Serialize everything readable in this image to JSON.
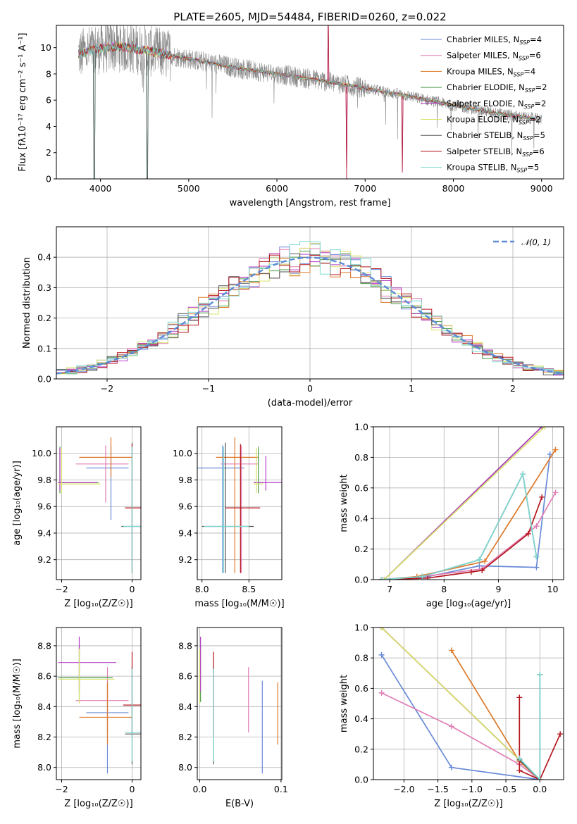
{
  "title": "PLATE=2605, MJD=54484, FIBERID=0260, z=0.022",
  "models": [
    {
      "name": "Chabrier MILES",
      "nssp": "4",
      "color": "#6a8ad8"
    },
    {
      "name": "Salpeter MILES",
      "nssp": "6",
      "color": "#e07fb5"
    },
    {
      "name": "Kroupa MILES",
      "nssp": "4",
      "color": "#dd7a2a"
    },
    {
      "name": "Chabrier ELODIE",
      "nssp": "2",
      "color": "#4c9a4a"
    },
    {
      "name": "Salpeter ELODIE",
      "nssp": "2",
      "color": "#b33cc4"
    },
    {
      "name": "Kroupa ELODIE",
      "nssp": "2",
      "color": "#d9e36a"
    },
    {
      "name": "Chabrier STELIB",
      "nssp": "5",
      "color": "#555555"
    },
    {
      "name": "Salpeter STELIB",
      "nssp": "6",
      "color": "#b3161d"
    },
    {
      "name": "Kroupa STELIB",
      "nssp": "5",
      "color": "#7fd9d3"
    }
  ],
  "nssp_label": "N",
  "nssp_sub": "SSP",
  "chart_data": [
    {
      "id": "spectrum",
      "type": "line",
      "xlabel": "wavelength [Angstrom, rest frame]",
      "ylabel": "Flux [fλ10⁻¹⁷ erg cm⁻² s⁻¹ A⁻¹]",
      "xlim": [
        3500,
        9250
      ],
      "ylim": [
        0,
        11.7
      ],
      "xticks": [
        4000,
        5000,
        6000,
        7000,
        8000,
        9000
      ],
      "yticks": [
        0,
        2,
        4,
        6,
        8,
        10
      ],
      "data_color": "#888888",
      "continuum": [
        [
          3750,
          9.5
        ],
        [
          3950,
          9.9
        ],
        [
          4200,
          10.1
        ],
        [
          4500,
          9.8
        ],
        [
          4800,
          9.4
        ],
        [
          5200,
          8.9
        ],
        [
          5600,
          8.4
        ],
        [
          6000,
          8.0
        ],
        [
          6500,
          7.5
        ],
        [
          7000,
          6.9
        ],
        [
          7500,
          6.3
        ],
        [
          8000,
          5.6
        ],
        [
          8500,
          5.0
        ],
        [
          9000,
          4.5
        ]
      ],
      "spikes": [
        [
          3930,
          0
        ],
        [
          4530,
          0
        ],
        [
          6790,
          0
        ],
        [
          7420,
          0.5
        ],
        [
          6580,
          13
        ]
      ],
      "grid": false
    },
    {
      "id": "residuals",
      "type": "histogram",
      "xlabel": "(data-model)/error",
      "ylabel": "Normed distribution",
      "xlim": [
        -2.5,
        2.5
      ],
      "ylim": [
        0,
        0.5
      ],
      "xticks": [
        -2,
        -1,
        0,
        1,
        2
      ],
      "yticks": [
        0.0,
        0.1,
        0.2,
        0.3,
        0.4
      ],
      "legend": "𝒩(0, 1)",
      "legend_position": "top-right",
      "bin_width": 0.1,
      "grid": true
    },
    {
      "id": "age_vs_z",
      "type": "scatter",
      "xlabel": "Z [log₁₀(Z/Z☉)]",
      "ylabel": "age  [log₁₀(age/yr)]",
      "xlim": [
        -2.15,
        0.25
      ],
      "ylim": [
        9.05,
        10.2
      ],
      "xticks": [
        -2,
        0
      ],
      "yticks": [
        9.2,
        9.4,
        9.6,
        9.8,
        10.0
      ],
      "grid": true,
      "points": [
        {
          "m": 0,
          "x": -0.6,
          "y": 9.89,
          "ex": [
            -1.3,
            -0.1
          ],
          "ey": [
            9.5,
            10.05
          ]
        },
        {
          "m": 1,
          "x": -0.75,
          "y": 9.92,
          "ex": [
            -1.6,
            -0.1
          ],
          "ey": [
            9.63,
            10.06
          ]
        },
        {
          "m": 2,
          "x": -0.6,
          "y": 9.97,
          "ex": [
            -1.5,
            0.0
          ],
          "ey": [
            9.82,
            10.12
          ]
        },
        {
          "m": 3,
          "x": -2.05,
          "y": 9.78,
          "ex": [
            -2.1,
            -0.95
          ],
          "ey": [
            9.7,
            10.05
          ]
        },
        {
          "m": 4,
          "x": -2.05,
          "y": 9.78,
          "ex": [
            -2.1,
            -1.0
          ],
          "ey": [
            9.72,
            10.04
          ]
        },
        {
          "m": 5,
          "x": -2.0,
          "y": 9.77,
          "ex": [
            -2.1,
            -0.9
          ],
          "ey": [
            9.7,
            10.04
          ]
        },
        {
          "m": 6,
          "x": 0.0,
          "y": 9.45,
          "ex": [
            -0.3,
            0.3
          ],
          "ey": [
            9.1,
            10.08
          ]
        },
        {
          "m": 7,
          "x": 0.0,
          "y": 9.59,
          "ex": [
            -0.2,
            0.25
          ],
          "ey": [
            9.1,
            10.07
          ]
        },
        {
          "m": 8,
          "x": 0.0,
          "y": 9.45,
          "ex": [
            -0.25,
            0.25
          ],
          "ey": [
            9.1,
            10.05
          ]
        }
      ]
    },
    {
      "id": "age_vs_mass",
      "type": "scatter",
      "xlabel": "mass [log₁₀(M/M☉)]",
      "ylabel": "",
      "xlim": [
        7.95,
        8.85
      ],
      "ylim": [
        9.05,
        10.2
      ],
      "xticks": [
        8.0,
        8.5
      ],
      "yticks": [
        9.2,
        9.4,
        9.6,
        9.8,
        10.0
      ],
      "grid": true,
      "points": [
        {
          "m": 0,
          "x": 8.22,
          "y": 9.89,
          "ex": [
            7.95,
            8.45
          ],
          "ey": [
            9.1,
            10.06
          ]
        },
        {
          "m": 1,
          "x": 8.42,
          "y": 9.92,
          "ex": [
            8.2,
            8.6
          ],
          "ey": [
            9.1,
            10.06
          ]
        },
        {
          "m": 2,
          "x": 8.35,
          "y": 9.97,
          "ex": [
            8.15,
            8.6
          ],
          "ey": [
            9.1,
            10.12
          ]
        },
        {
          "m": 3,
          "x": 8.6,
          "y": 9.78,
          "ex": [
            8.55,
            8.65
          ],
          "ey": [
            9.7,
            10.05
          ]
        },
        {
          "m": 4,
          "x": 8.68,
          "y": 9.78,
          "ex": [
            8.55,
            8.85
          ],
          "ey": [
            9.72,
            9.98
          ]
        },
        {
          "m": 5,
          "x": 8.58,
          "y": 9.77,
          "ex": [
            8.55,
            8.65
          ],
          "ey": [
            9.7,
            10.04
          ]
        },
        {
          "m": 6,
          "x": 8.25,
          "y": 9.45,
          "ex": [
            8.0,
            8.55
          ],
          "ey": [
            9.1,
            10.08
          ]
        },
        {
          "m": 7,
          "x": 8.41,
          "y": 9.59,
          "ex": [
            8.25,
            8.62
          ],
          "ey": [
            9.1,
            10.07
          ]
        },
        {
          "m": 8,
          "x": 8.23,
          "y": 9.45,
          "ex": [
            8.02,
            8.5
          ],
          "ey": [
            9.1,
            10.05
          ]
        }
      ]
    },
    {
      "id": "weight_vs_age",
      "type": "line",
      "xlabel": "age  [log₁₀(age/yr)]",
      "ylabel": "mass weight",
      "xlim": [
        6.7,
        10.2
      ],
      "ylim": [
        0,
        1.0
      ],
      "xticks": [
        7,
        8,
        9,
        10
      ],
      "yticks": [
        0.0,
        0.2,
        0.4,
        0.6,
        0.8,
        1.0
      ],
      "grid": true,
      "series": [
        {
          "m": 0,
          "x": [
            6.85,
            7.7,
            8.65,
            9.7,
            9.95
          ],
          "y": [
            0.0,
            0.02,
            0.09,
            0.08,
            0.82
          ]
        },
        {
          "m": 1,
          "x": [
            6.85,
            7.6,
            8.7,
            9.7,
            10.05
          ],
          "y": [
            0.0,
            0.02,
            0.07,
            0.35,
            0.57
          ]
        },
        {
          "m": 2,
          "x": [
            6.85,
            7.5,
            8.75,
            10.05
          ],
          "y": [
            0.0,
            0.02,
            0.12,
            0.85
          ]
        },
        {
          "m": 3,
          "x": [
            6.9,
            9.8
          ],
          "y": [
            0.0,
            1.0
          ]
        },
        {
          "m": 4,
          "x": [
            6.9,
            9.8
          ],
          "y": [
            0.0,
            1.0
          ]
        },
        {
          "m": 5,
          "x": [
            6.9,
            9.85
          ],
          "y": [
            0.0,
            1.0
          ]
        },
        {
          "m": 6,
          "x": [
            6.85,
            7.6,
            8.65,
            9.45,
            9.7
          ],
          "y": [
            0.0,
            0.02,
            0.13,
            0.69,
            0.15
          ]
        },
        {
          "m": 7,
          "x": [
            6.85,
            7.7,
            8.5,
            8.7,
            9.55,
            9.8
          ],
          "y": [
            0.0,
            0.01,
            0.05,
            0.06,
            0.3,
            0.54
          ]
        },
        {
          "m": 8,
          "x": [
            6.85,
            7.6,
            8.65,
            9.45,
            9.7
          ],
          "y": [
            0.0,
            0.02,
            0.13,
            0.69,
            0.15
          ]
        }
      ]
    },
    {
      "id": "mass_vs_z",
      "type": "scatter",
      "xlabel": "Z [log₁₀(Z/Z☉)]",
      "ylabel": "mass [log₁₀(M/M☉)]",
      "xlim": [
        -2.15,
        0.25
      ],
      "ylim": [
        7.92,
        8.92
      ],
      "xticks": [
        -2,
        0
      ],
      "yticks": [
        8.0,
        8.2,
        8.4,
        8.6,
        8.8
      ],
      "grid": true,
      "points": [
        {
          "m": 0,
          "x": -0.7,
          "y": 8.36,
          "ex": [
            -1.3,
            -0.1
          ],
          "ey": [
            7.96,
            8.56
          ]
        },
        {
          "m": 1,
          "x": -0.7,
          "y": 8.44,
          "ex": [
            -1.6,
            -0.1
          ],
          "ey": [
            8.23,
            8.66
          ]
        },
        {
          "m": 2,
          "x": -0.7,
          "y": 8.33,
          "ex": [
            -1.5,
            0.0
          ],
          "ey": [
            8.15,
            8.56
          ]
        },
        {
          "m": 3,
          "x": -1.5,
          "y": 8.59,
          "ex": [
            -2.1,
            -0.55
          ],
          "ey": [
            8.43,
            8.8
          ]
        },
        {
          "m": 4,
          "x": -1.5,
          "y": 8.69,
          "ex": [
            -2.1,
            -0.45
          ],
          "ey": [
            8.5,
            8.86
          ]
        },
        {
          "m": 5,
          "x": -1.5,
          "y": 8.58,
          "ex": [
            -2.1,
            -0.5
          ],
          "ey": [
            8.42,
            8.78
          ]
        },
        {
          "m": 6,
          "x": 0.0,
          "y": 8.22,
          "ex": [
            -0.2,
            0.3
          ],
          "ey": [
            8.02,
            8.66
          ]
        },
        {
          "m": 7,
          "x": 0.0,
          "y": 8.41,
          "ex": [
            -0.25,
            0.3
          ],
          "ey": [
            8.21,
            8.76
          ]
        },
        {
          "m": 8,
          "x": 0.0,
          "y": 8.23,
          "ex": [
            -0.2,
            0.25
          ],
          "ey": [
            8.04,
            8.65
          ]
        }
      ]
    },
    {
      "id": "mass_vs_ebv",
      "type": "scatter",
      "xlabel": "E(B-V)",
      "ylabel": "",
      "xlim": [
        -0.003,
        0.101
      ],
      "ylim": [
        7.92,
        8.92
      ],
      "xticks": [
        0.0,
        0.1
      ],
      "yticks": [
        8.0,
        8.2,
        8.4,
        8.6,
        8.8
      ],
      "grid": true,
      "points": [
        {
          "m": 0,
          "x": 0.077,
          "y": 8.36,
          "ey": [
            7.96,
            8.57
          ]
        },
        {
          "m": 1,
          "x": 0.06,
          "y": 8.44,
          "ey": [
            8.23,
            8.66
          ]
        },
        {
          "m": 2,
          "x": 0.096,
          "y": 8.33,
          "ey": [
            8.15,
            8.56
          ]
        },
        {
          "m": 3,
          "x": 0.001,
          "y": 8.59,
          "ey": [
            8.43,
            8.8
          ]
        },
        {
          "m": 4,
          "x": 0.001,
          "y": 8.69,
          "ey": [
            8.5,
            8.86
          ]
        },
        {
          "m": 5,
          "x": 0.0,
          "y": 8.58,
          "ey": [
            8.42,
            8.78
          ]
        },
        {
          "m": 6,
          "x": 0.017,
          "y": 8.22,
          "ey": [
            8.02,
            8.66
          ]
        },
        {
          "m": 7,
          "x": 0.017,
          "y": 8.41,
          "ey": [
            8.21,
            8.76
          ]
        },
        {
          "m": 8,
          "x": 0.017,
          "y": 8.23,
          "ey": [
            8.04,
            8.65
          ]
        }
      ]
    },
    {
      "id": "weight_vs_z",
      "type": "line",
      "xlabel": "Z [log₁₀(Z/Z☉)]",
      "ylabel": "mass weight",
      "xlim": [
        -2.45,
        0.35
      ],
      "ylim": [
        0,
        1.0
      ],
      "xticks": [
        -2.0,
        -1.5,
        -1.0,
        -0.5,
        0.0
      ],
      "yticks": [
        0.0,
        0.2,
        0.4,
        0.6,
        0.8,
        1.0
      ],
      "grid": true,
      "series": [
        {
          "m": 0,
          "x": [
            -2.33,
            -1.3,
            0.0
          ],
          "y": [
            0.82,
            0.08,
            0.0
          ]
        },
        {
          "m": 1,
          "x": [
            -2.33,
            -1.3,
            -0.3,
            0.0
          ],
          "y": [
            0.57,
            0.35,
            0.1,
            0.0
          ]
        },
        {
          "m": 2,
          "x": [
            -1.3,
            -0.3,
            0.0
          ],
          "y": [
            0.85,
            0.12,
            0.0
          ]
        },
        {
          "m": 3,
          "x": [
            -2.33,
            0.0
          ],
          "y": [
            1.0,
            0.0
          ]
        },
        {
          "m": 4,
          "x": [
            -2.33,
            0.0
          ],
          "y": [
            1.0,
            0.0
          ]
        },
        {
          "m": 5,
          "x": [
            -2.33,
            0.0
          ],
          "y": [
            1.0,
            0.0
          ]
        },
        {
          "m": 6,
          "x": [
            -0.3,
            0.0,
            0.0
          ],
          "y": [
            0.13,
            0.0,
            0.69
          ]
        },
        {
          "m": 7,
          "x": [
            -0.3,
            -0.3,
            0.0,
            0.3
          ],
          "y": [
            0.54,
            0.06,
            0.0,
            0.3
          ]
        },
        {
          "m": 8,
          "x": [
            -0.3,
            0.0,
            0.0
          ],
          "y": [
            0.14,
            0.0,
            0.69
          ]
        }
      ]
    }
  ]
}
